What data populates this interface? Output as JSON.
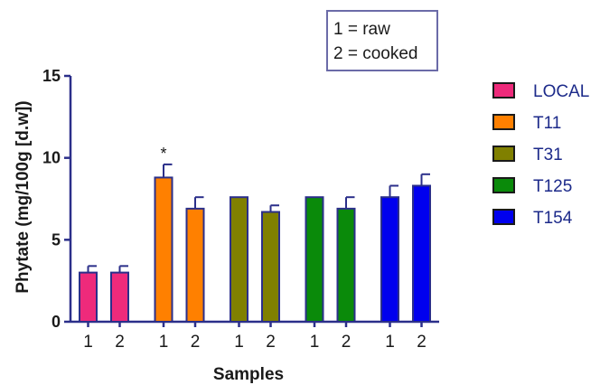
{
  "chart_data": {
    "type": "bar",
    "ylabel": "Phytate (mg/100g [d.w])",
    "xlabel": "Samples",
    "ylim": [
      0,
      15
    ],
    "yticks": [
      0,
      5,
      10,
      15
    ],
    "grid": false,
    "legend_position": "right",
    "note_lines": [
      "1 = raw",
      "2 = cooked"
    ],
    "categories": [
      "1",
      "2"
    ],
    "series": [
      {
        "name": "LOCAL",
        "color": "#ee2a7b",
        "values": [
          3.0,
          3.0
        ],
        "errors": [
          0.4,
          0.4
        ],
        "marks": [
          "",
          ""
        ]
      },
      {
        "name": "T11",
        "color": "#ff8000",
        "values": [
          8.8,
          6.9
        ],
        "errors": [
          0.8,
          0.7
        ],
        "marks": [
          "*",
          ""
        ]
      },
      {
        "name": "T31",
        "color": "#808000",
        "values": [
          7.6,
          6.7
        ],
        "errors": [
          0.0,
          0.4
        ],
        "marks": [
          "",
          ""
        ]
      },
      {
        "name": "T125",
        "color": "#0a8a0a",
        "values": [
          7.6,
          6.9
        ],
        "errors": [
          0.0,
          0.7
        ],
        "marks": [
          "",
          ""
        ]
      },
      {
        "name": "T154",
        "color": "#0000ee",
        "values": [
          7.6,
          8.3
        ],
        "errors": [
          0.7,
          0.7
        ],
        "marks": [
          "",
          ""
        ]
      }
    ]
  }
}
